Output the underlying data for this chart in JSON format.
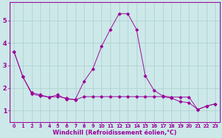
{
  "x": [
    0,
    1,
    2,
    3,
    4,
    5,
    6,
    7,
    8,
    9,
    10,
    11,
    12,
    13,
    14,
    15,
    16,
    17,
    18,
    19,
    20,
    21,
    22,
    23
  ],
  "y_main": [
    3.6,
    2.5,
    1.8,
    1.7,
    1.6,
    1.7,
    1.5,
    1.5,
    2.3,
    2.85,
    3.85,
    4.6,
    5.3,
    5.3,
    4.6,
    2.55,
    1.9,
    1.65,
    1.6,
    1.6,
    1.6,
    1.05,
    1.2,
    1.3
  ],
  "y_extra": [
    3.6,
    2.5,
    1.75,
    1.65,
    1.6,
    1.62,
    1.55,
    1.48,
    1.62,
    1.62,
    1.62,
    1.62,
    1.62,
    1.62,
    1.62,
    1.62,
    1.62,
    1.62,
    1.55,
    1.4,
    1.35,
    1.05,
    1.2,
    1.3
  ],
  "line_color": "#990099",
  "marker": "D",
  "markersize": 2.5,
  "bg_color": "#cce8e8",
  "grid_color": "#aacccc",
  "text_color": "#990099",
  "ylabel_ticks": [
    1,
    2,
    3,
    4,
    5
  ],
  "xtick_labels": [
    "0",
    "1",
    "2",
    "3",
    "4",
    "5",
    "6",
    "7",
    "8",
    "9",
    "10",
    "11",
    "12",
    "13",
    "14",
    "15",
    "16",
    "17",
    "18",
    "19",
    "20",
    "21",
    "22",
    "23"
  ],
  "xlim": [
    -0.5,
    23.5
  ],
  "ylim": [
    0.5,
    5.8
  ],
  "xlabel": "Windchill (Refroidissement éolien,°C)",
  "tick_fontsize": 5.0,
  "xlabel_fontsize": 6.0
}
